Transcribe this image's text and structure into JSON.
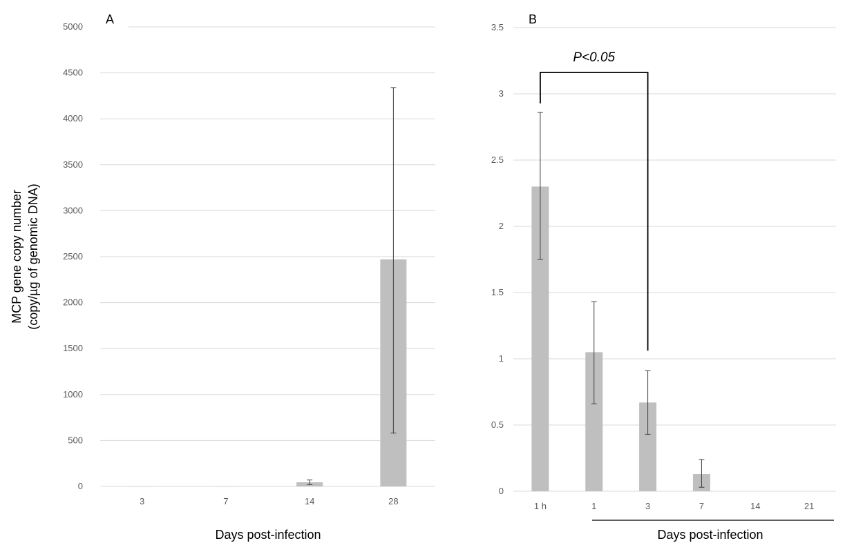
{
  "chart_data": [
    {
      "panel": "A",
      "type": "bar",
      "categories": [
        "3",
        "7",
        "14",
        "28"
      ],
      "values": [
        2,
        2,
        45,
        2470
      ],
      "error_low": [
        2,
        2,
        20,
        580
      ],
      "error_high": [
        2,
        2,
        70,
        4340
      ],
      "ylim": [
        0,
        5000
      ],
      "yticks": [
        0,
        500,
        1000,
        1500,
        2000,
        2500,
        3000,
        3500,
        4000,
        4500,
        5000
      ],
      "ylabel_lines": [
        "MCP gene copy number",
        "(copy/µg of genomic DNA)"
      ],
      "xlabel": "Days post-infection",
      "grid": true,
      "bar_color": "#bfbfbf"
    },
    {
      "panel": "B",
      "type": "bar",
      "categories": [
        "1 h",
        "1",
        "3",
        "7",
        "14",
        "21"
      ],
      "values": [
        2.3,
        1.05,
        0.67,
        0.13,
        0,
        0
      ],
      "error_low": [
        1.75,
        0.66,
        0.43,
        0.03,
        0,
        0
      ],
      "error_high": [
        2.86,
        1.43,
        0.91,
        0.24,
        0,
        0
      ],
      "ylim": [
        0,
        3.5
      ],
      "yticks": [
        0,
        0.5,
        1,
        1.5,
        2,
        2.5,
        3,
        3.5
      ],
      "xlabel": "Days post-infection",
      "grid": true,
      "bar_color": "#bfbfbf",
      "significance": {
        "text": "P<0.05",
        "from": "1 h",
        "to": "3"
      }
    }
  ]
}
